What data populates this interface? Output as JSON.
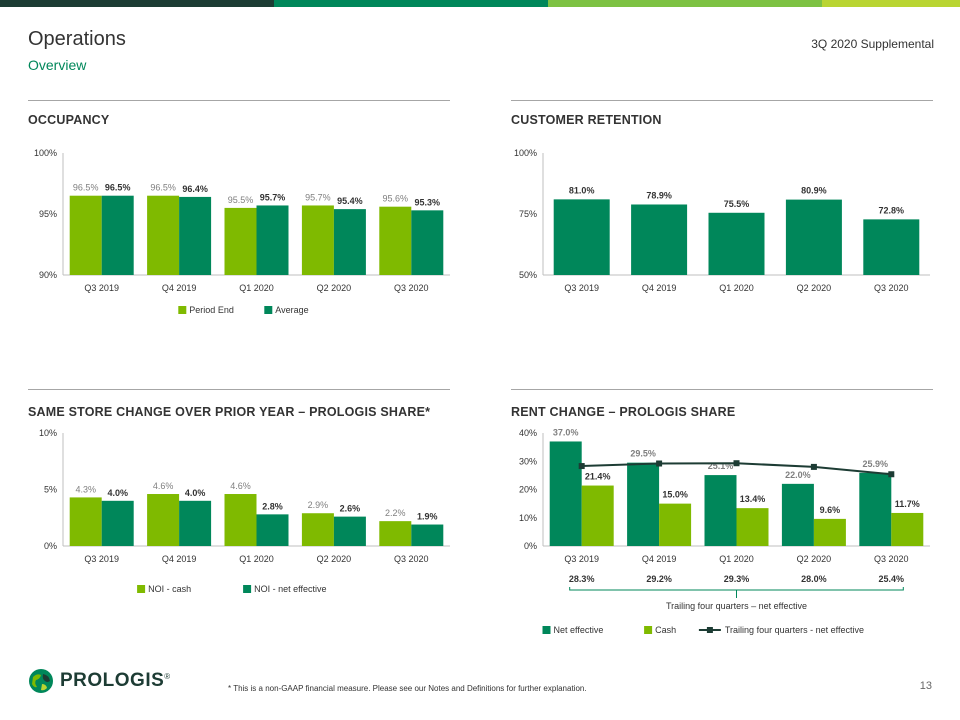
{
  "header": {
    "title": "Operations",
    "subtitle": "Overview",
    "supplemental": "3Q 2020 Supplemental",
    "page_number": "13",
    "footnote": "* This is a non-GAAP financial measure. Please see our Notes and Definitions for further explanation.",
    "logo_text": "PROLOGIS",
    "logo_mark": "®"
  },
  "colors": {
    "topbar": [
      "#1d3c34",
      "#00875a",
      "#7dc243",
      "#b9d532"
    ],
    "light_green": "#7fba00",
    "dark_green": "#00875a",
    "navy_line": "#1d3c34"
  },
  "chart_data": [
    {
      "id": "occupancy",
      "type": "bar",
      "title": "OCCUPANCY",
      "categories": [
        "Q3 2019",
        "Q4 2019",
        "Q1 2020",
        "Q2 2020",
        "Q3 2020"
      ],
      "series": [
        {
          "name": "Period End",
          "color": "#7fba00",
          "values": [
            96.5,
            96.5,
            95.5,
            95.7,
            95.6
          ],
          "labels": [
            "96.5%",
            "96.5%",
            "95.5%",
            "95.7%",
            "95.6%"
          ]
        },
        {
          "name": "Average",
          "color": "#00875a",
          "values": [
            96.5,
            96.4,
            95.7,
            95.4,
            95.3
          ],
          "labels": [
            "96.5%",
            "96.4%",
            "95.7%",
            "95.4%",
            "95.3%"
          ]
        }
      ],
      "ylim": [
        90,
        100
      ],
      "yticks": [
        90,
        95,
        100
      ],
      "ytick_labels": [
        "90%",
        "95%",
        "100%"
      ],
      "legend": "bottom"
    },
    {
      "id": "retention",
      "type": "bar",
      "title": "CUSTOMER RETENTION",
      "categories": [
        "Q3 2019",
        "Q4 2019",
        "Q1 2020",
        "Q2 2020",
        "Q3 2020"
      ],
      "series": [
        {
          "color": "#00875a",
          "values": [
            81.0,
            78.9,
            75.5,
            80.9,
            72.8
          ],
          "labels": [
            "81.0%",
            "78.9%",
            "75.5%",
            "80.9%",
            "72.8%"
          ]
        }
      ],
      "ylim": [
        50,
        100
      ],
      "yticks": [
        50,
        75,
        100
      ],
      "ytick_labels": [
        "50%",
        "75%",
        "100%"
      ]
    },
    {
      "id": "same_store",
      "type": "bar",
      "title": "SAME STORE CHANGE OVER PRIOR YEAR – PROLOGIS SHARE*",
      "categories": [
        "Q3 2019",
        "Q4 2019",
        "Q1 2020",
        "Q2 2020",
        "Q3 2020"
      ],
      "series": [
        {
          "name": "NOI - cash",
          "color": "#7fba00",
          "values": [
            4.3,
            4.6,
            4.6,
            2.9,
            2.2
          ],
          "labels": [
            "4.3%",
            "4.6%",
            "4.6%",
            "2.9%",
            "2.2%"
          ]
        },
        {
          "name": "NOI - net effective",
          "color": "#00875a",
          "values": [
            4.0,
            4.0,
            2.8,
            2.6,
            1.9
          ],
          "labels": [
            "4.0%",
            "4.0%",
            "2.8%",
            "2.6%",
            "1.9%"
          ]
        }
      ],
      "ylim": [
        0,
        10
      ],
      "yticks": [
        0,
        5,
        10
      ],
      "ytick_labels": [
        "0%",
        "5%",
        "10%"
      ],
      "legend": "bottom"
    },
    {
      "id": "rent_change",
      "type": "bar",
      "title": "RENT CHANGE – PROLOGIS SHARE",
      "categories": [
        "Q3 2019",
        "Q4 2019",
        "Q1 2020",
        "Q2 2020",
        "Q3 2020"
      ],
      "series": [
        {
          "name": "Net effective",
          "color": "#00875a",
          "values": [
            37.0,
            29.5,
            25.1,
            22.0,
            25.9
          ],
          "labels": [
            "37.0%",
            "29.5%",
            "25.1%",
            "22.0%",
            "25.9%"
          ]
        },
        {
          "name": "Cash",
          "color": "#7fba00",
          "values": [
            21.4,
            15.0,
            13.4,
            9.6,
            11.7
          ],
          "labels": [
            "21.4%",
            "15.0%",
            "13.4%",
            "9.6%",
            "11.7%"
          ]
        },
        {
          "name": "Trailing four quarters - net effective",
          "type": "line",
          "color": "#1d3c34",
          "values": [
            28.3,
            29.2,
            29.3,
            28.0,
            25.4
          ],
          "labels": [
            "28.3%",
            "29.2%",
            "29.3%",
            "28.0%",
            "25.4%"
          ]
        }
      ],
      "ylim": [
        0,
        40
      ],
      "yticks": [
        0,
        10,
        20,
        30,
        40
      ],
      "ytick_labels": [
        "0%",
        "10%",
        "20%",
        "30%",
        "40%"
      ],
      "bracket_label": "Trailing four quarters – net effective",
      "legend": "bottom"
    }
  ]
}
